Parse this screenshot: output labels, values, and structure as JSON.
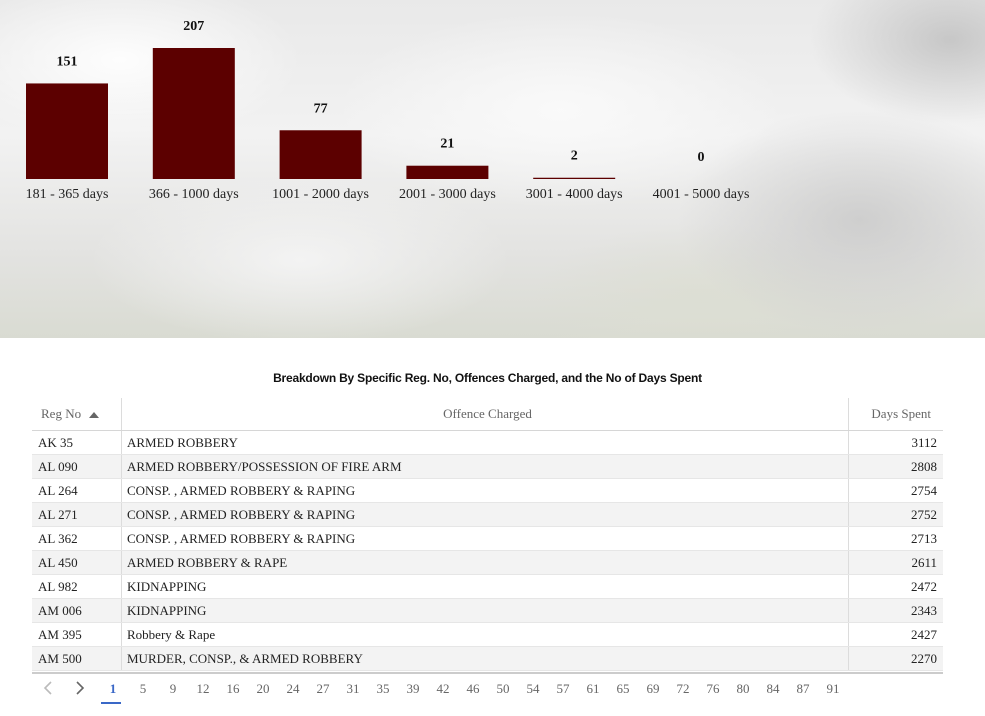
{
  "chart_data": {
    "type": "bar",
    "categories": [
      "181 - 365 days",
      "366 - 1000 days",
      "1001 - 2000 days",
      "2001 - 3000 days",
      "3001 - 4000 days",
      "4001 - 5000 days"
    ],
    "values": [
      151,
      207,
      77,
      21,
      2,
      0
    ],
    "title": "",
    "xlabel": "",
    "ylabel": "",
    "ylim": [
      0,
      207
    ],
    "grid": false,
    "bar_color": "#5c0000"
  },
  "table": {
    "title": "Breakdown By Specific Reg. No, Offences Charged, and the No of Days Spent",
    "columns": {
      "reg": "Reg No",
      "offence": "Offence Charged",
      "days": "Days Spent"
    },
    "sort": {
      "column": "Reg No",
      "direction": "ascending",
      "icon": "sort-asc-icon"
    },
    "rows": [
      {
        "reg": "AK 35",
        "offence": "ARMED ROBBERY",
        "days": "3112"
      },
      {
        "reg": "AL 090",
        "offence": "ARMED ROBBERY/POSSESSION OF FIRE ARM",
        "days": "2808"
      },
      {
        "reg": "AL 264",
        "offence": "CONSP. , ARMED ROBBERY & RAPING",
        "days": "2754"
      },
      {
        "reg": "AL 271",
        "offence": "CONSP. , ARMED ROBBERY & RAPING",
        "days": "2752"
      },
      {
        "reg": "AL 362",
        "offence": "CONSP. , ARMED ROBBERY & RAPING",
        "days": "2713"
      },
      {
        "reg": "AL 450",
        "offence": "ARMED ROBBERY & RAPE",
        "days": "2611"
      },
      {
        "reg": "AL 982",
        "offence": "KIDNAPPING",
        "days": "2472"
      },
      {
        "reg": "AM 006",
        "offence": "KIDNAPPING",
        "days": "2343"
      },
      {
        "reg": "AM 395",
        "offence": "Robbery & Rape",
        "days": "2427"
      },
      {
        "reg": "AM 500",
        "offence": "MURDER, CONSP., & ARMED ROBBERY",
        "days": "2270"
      }
    ]
  },
  "pager": {
    "prev_icon": "chevron-left-icon",
    "next_icon": "chevron-right-icon",
    "active": "1",
    "pages": [
      "1",
      "5",
      "9",
      "12",
      "16",
      "20",
      "24",
      "27",
      "31",
      "35",
      "39",
      "42",
      "46",
      "50",
      "54",
      "57",
      "61",
      "65",
      "69",
      "72",
      "76",
      "80",
      "84",
      "87",
      "91"
    ],
    "active_color": "#3a68c7"
  }
}
